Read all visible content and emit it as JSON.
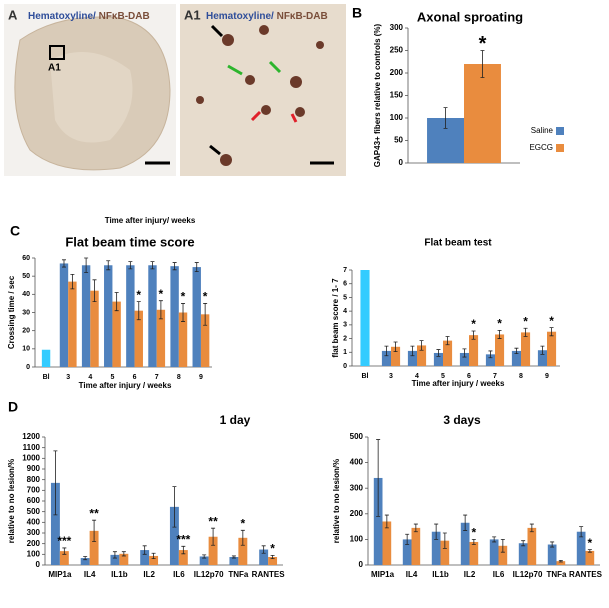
{
  "images": [
    {
      "letter": "A",
      "stain": [
        "Hematoxyline/",
        "NFκB-DAB"
      ],
      "inset": "A1"
    },
    {
      "letter": "A1",
      "stain": [
        "Hematoxyline/",
        "NFκB-DAB"
      ]
    }
  ],
  "panel_letters": [
    "B",
    "C",
    "D"
  ],
  "caption": "Time after injury/ weeks",
  "chart_data": [
    {
      "type": "bar",
      "title": "Axonal sproating",
      "y_label": "GAP43+ fibers relative to controls (%)",
      "categories": [
        null
      ],
      "ylim": [
        0,
        300
      ],
      "yticks": [
        0,
        50,
        100,
        150,
        200,
        250,
        300
      ],
      "legend": "right",
      "series": [
        {
          "name": "Saline",
          "color": "#4f81bd",
          "values": [
            100
          ],
          "errors": [
            23
          ]
        },
        {
          "name": "EGCG",
          "color": "#e98c3e",
          "values": [
            220
          ],
          "errors": [
            30
          ],
          "annotations": [
            "*"
          ]
        }
      ]
    },
    {
      "type": "bar",
      "title": "Flat beam  time score",
      "x_label": "Time after injury / weeks",
      "y_label": "Crossing time / sec",
      "categories": [
        "Bl",
        "3",
        "4",
        "5",
        "6",
        "7",
        "8",
        "9"
      ],
      "ylim": [
        0,
        60
      ],
      "yticks": [
        0,
        10,
        20,
        30,
        40,
        50,
        60
      ],
      "series": [
        {
          "color": "#33ccff",
          "values": [
            9.5,
            null,
            null,
            null,
            null,
            null,
            null,
            null
          ]
        },
        {
          "color": "#4f81bd",
          "values": [
            null,
            57,
            56,
            56,
            56,
            56,
            55.5,
            55
          ],
          "errors": [
            null,
            2,
            4,
            2.5,
            2,
            2,
            2,
            2.5
          ]
        },
        {
          "color": "#e98c3e",
          "values": [
            null,
            47,
            42,
            36,
            31,
            31.5,
            30,
            29
          ],
          "errors": [
            null,
            4,
            6,
            5,
            5,
            5,
            5,
            6
          ],
          "annotations": [
            null,
            null,
            null,
            null,
            "*",
            "*",
            "*",
            "*"
          ]
        }
      ]
    },
    {
      "type": "bar",
      "title": "Flat beam test",
      "x_label": "Time after injury / weeks",
      "y_label": "flat beam score / 1- 7",
      "categories": [
        "Bl",
        "3",
        "4",
        "5",
        "6",
        "7",
        "8",
        "9"
      ],
      "ylim": [
        0,
        7
      ],
      "yticks": [
        0,
        1,
        2,
        3,
        4,
        5,
        6,
        7
      ],
      "series": [
        {
          "color": "#33ccff",
          "values": [
            7,
            null,
            null,
            null,
            null,
            null,
            null,
            null
          ]
        },
        {
          "color": "#4f81bd",
          "values": [
            null,
            1.1,
            1.1,
            0.95,
            0.95,
            0.85,
            1.1,
            1.15
          ],
          "errors": [
            null,
            0.35,
            0.35,
            0.25,
            0.3,
            0.25,
            0.2,
            0.3
          ]
        },
        {
          "color": "#e98c3e",
          "values": [
            null,
            1.4,
            1.5,
            1.85,
            2.25,
            2.3,
            2.45,
            2.5
          ],
          "errors": [
            null,
            0.35,
            0.35,
            0.3,
            0.3,
            0.3,
            0.3,
            0.3
          ],
          "annotations": [
            null,
            null,
            null,
            null,
            "*",
            "*",
            "*",
            "*"
          ]
        }
      ]
    },
    {
      "type": "bar",
      "title": "1 day",
      "y_label": "relative to no lesion/%",
      "categories": [
        "MIP1a",
        "IL4",
        "IL1b",
        "IL2",
        "IL6",
        "IL12p70",
        "TNFa",
        "RANTES"
      ],
      "ylim": [
        0,
        1200
      ],
      "yticks": [
        0,
        100,
        200,
        300,
        400,
        500,
        600,
        700,
        800,
        900,
        1000,
        1100,
        1200
      ],
      "series": [
        {
          "color": "#4f81bd",
          "values": [
            770,
            65,
            95,
            140,
            545,
            80,
            75,
            145
          ],
          "errors": [
            300,
            15,
            30,
            40,
            190,
            15,
            10,
            35
          ]
        },
        {
          "color": "#e98c3e",
          "values": [
            130,
            320,
            105,
            85,
            140,
            265,
            255,
            75
          ],
          "errors": [
            30,
            100,
            20,
            25,
            35,
            80,
            70,
            15
          ],
          "annotations": [
            "***",
            "**",
            null,
            null,
            "***",
            "**",
            "*",
            "*"
          ]
        }
      ]
    },
    {
      "type": "bar",
      "title": "3 days",
      "y_label": "relative to no lesion/%",
      "categories": [
        "MIP1a",
        "IL4",
        "IL1b",
        "IL2",
        "IL6",
        "IL12p70",
        "TNFa",
        "RANTES"
      ],
      "ylim": [
        0,
        500
      ],
      "yticks": [
        0,
        100,
        200,
        300,
        400,
        500
      ],
      "series": [
        {
          "color": "#4f81bd",
          "values": [
            340,
            100,
            130,
            165,
            100,
            85,
            80,
            130
          ],
          "errors": [
            150,
            20,
            30,
            30,
            10,
            10,
            10,
            20
          ]
        },
        {
          "color": "#e98c3e",
          "values": [
            170,
            145,
            95,
            90,
            75,
            145,
            15,
            55
          ],
          "errors": [
            25,
            15,
            30,
            10,
            25,
            15,
            3,
            5
          ],
          "annotations": [
            null,
            null,
            null,
            "*",
            null,
            null,
            null,
            "*"
          ]
        }
      ]
    }
  ]
}
